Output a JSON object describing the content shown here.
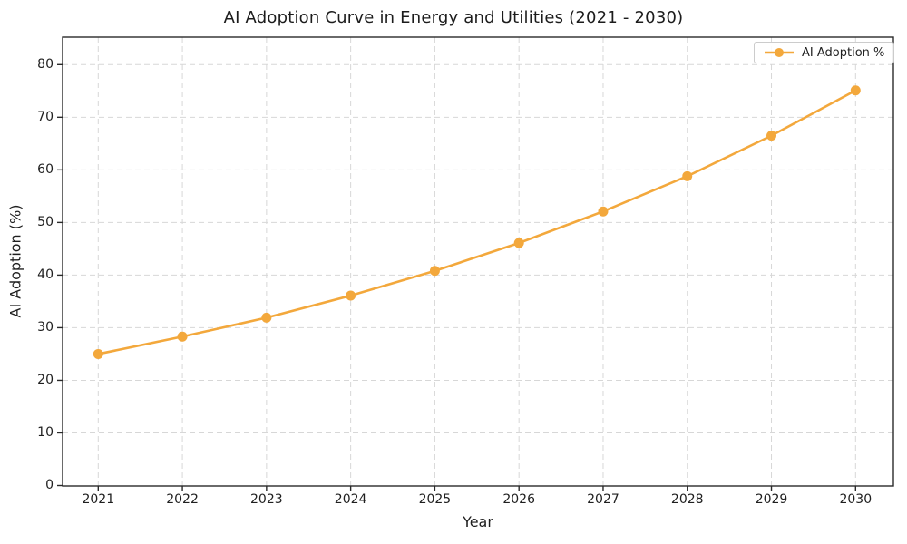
{
  "title": "AI Adoption Curve in Energy and Utilities (2021 - 2030)",
  "legend": {
    "entries": [
      {
        "label": "AI Adoption %"
      }
    ],
    "position": "upper-right"
  },
  "colors": {
    "line": "#F3A83C",
    "marker": "#F3A83C",
    "grid": "#d7d7d7",
    "axis": "#2a2a2a",
    "text": "#1f1f1f",
    "legend_border": "#cccccc",
    "background": "#ffffff"
  },
  "chart_data": {
    "type": "line",
    "title": "AI Adoption Curve in Energy and Utilities (2021 - 2030)",
    "xlabel": "Year",
    "ylabel": "AI Adoption (%)",
    "categories": [
      "2021",
      "2022",
      "2023",
      "2024",
      "2025",
      "2026",
      "2027",
      "2028",
      "2029",
      "2030"
    ],
    "series": [
      {
        "name": "AI Adoption %",
        "color": "#F3A83C",
        "marker": "circle",
        "values": [
          25.0,
          28.3,
          31.9,
          36.1,
          40.8,
          46.1,
          52.1,
          58.8,
          66.5,
          75.1
        ]
      }
    ],
    "yticks": [
      0,
      10,
      20,
      30,
      40,
      50,
      60,
      70,
      80
    ],
    "ylim": [
      0,
      85.3
    ],
    "grid": true,
    "grid_style": "dashed",
    "legend_position": "upper right"
  }
}
